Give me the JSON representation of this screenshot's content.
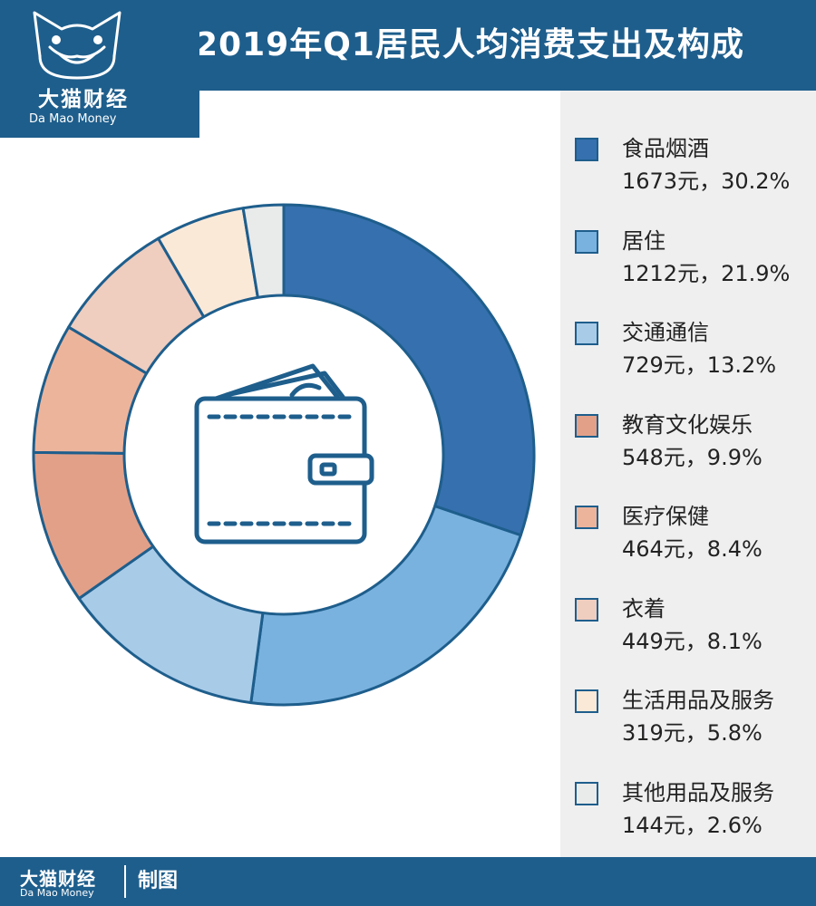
{
  "header": {
    "title": "2019年Q1居民人均消费支出及构成"
  },
  "logo": {
    "name_cn": "大猫财经",
    "name_en": "Da Mao Money"
  },
  "footer": {
    "brand_cn": "大猫财经",
    "brand_en": "Da Mao Money",
    "made_label": "制图"
  },
  "colors": {
    "brand": "#1e5e8c",
    "legend_panel": "#efeff0",
    "wallet_icon": "#1e5e8c"
  },
  "center_icon": "wallet-icon",
  "chart_data": {
    "type": "pie",
    "title": "2019年Q1居民人均消费支出及构成",
    "style": "donut",
    "legend_position": "right",
    "categories": [
      "食品烟酒",
      "居住",
      "交通通信",
      "教育文化娱乐",
      "医疗保健",
      "衣着",
      "生活用品及服务",
      "其他用品及服务"
    ],
    "values": [
      1673,
      1212,
      729,
      548,
      464,
      449,
      319,
      144
    ],
    "value_labels": [
      "1673元，30.2%",
      "1212元，21.9%",
      "729元，13.2%",
      "548元，9.9%",
      "464元，8.4%",
      "449元，8.1%",
      "319元，5.8%",
      "144元，2.6%"
    ],
    "percents": [
      30.2,
      21.9,
      13.2,
      9.9,
      8.4,
      8.1,
      5.8,
      2.6
    ],
    "colors": [
      "#3670ae",
      "#7ab2df",
      "#a8cbe8",
      "#e3a088",
      "#edb49c",
      "#efcdbf",
      "#fbe9d8",
      "#e9eaea"
    ],
    "unit": "元"
  }
}
